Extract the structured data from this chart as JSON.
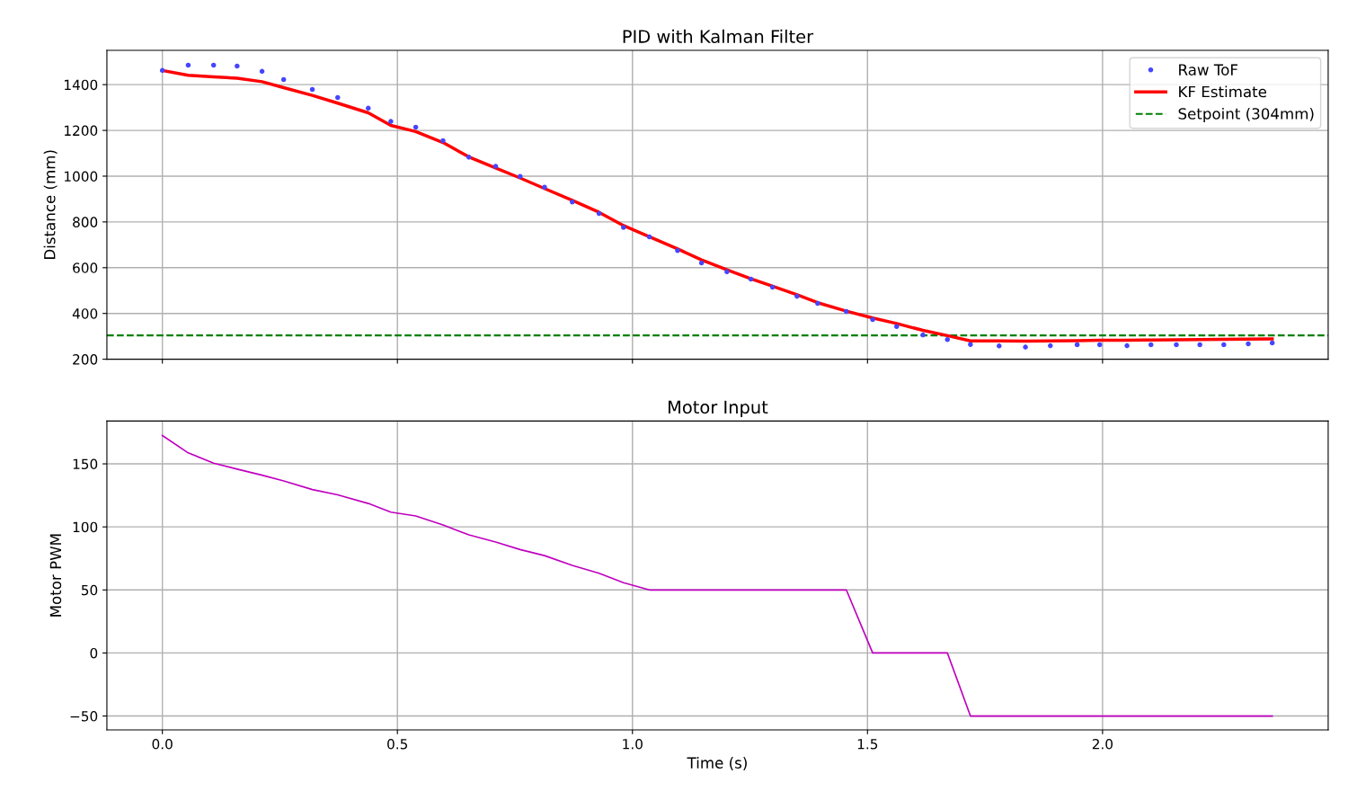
{
  "chart_data": [
    {
      "type": "line",
      "title": "PID with Kalman Filter",
      "ylabel": "Distance (mm)",
      "x": [
        0,
        0.055,
        0.109,
        0.159,
        0.212,
        0.258,
        0.319,
        0.373,
        0.438,
        0.486,
        0.539,
        0.597,
        0.652,
        0.709,
        0.761,
        0.813,
        0.872,
        0.929,
        0.981,
        1.036,
        1.096,
        1.147,
        1.201,
        1.252,
        1.298,
        1.35,
        1.394,
        1.455,
        1.511,
        1.562,
        1.618,
        1.67,
        1.719,
        1.78,
        1.836,
        1.889,
        1.946,
        1.994,
        2.052,
        2.103,
        2.157,
        2.207,
        2.258,
        2.31,
        2.361
      ],
      "series": [
        {
          "name": "Raw ToF",
          "type": "scatter",
          "marker": "circle",
          "color": "#4646ff",
          "values": [
            1462,
            1485,
            1485,
            1481,
            1458,
            1422,
            1379,
            1344,
            1297,
            1239,
            1214,
            1155,
            1083,
            1043,
            999,
            952,
            887,
            837,
            776,
            735,
            675,
            621,
            582,
            550,
            515,
            475,
            444,
            409,
            373,
            343,
            306,
            286,
            264,
            258,
            253,
            259,
            263,
            263,
            259,
            263,
            263,
            263,
            263,
            267,
            271
          ]
        },
        {
          "name": "KF Estimate",
          "type": "line",
          "line_style": "solid",
          "color": "#ff0000",
          "values": [
            1462,
            1441,
            1434,
            1428,
            1413,
            1387,
            1353,
            1319,
            1277,
            1222,
            1195,
            1147,
            1084,
            1036,
            992,
            946,
            894,
            842,
            784,
            735,
            682,
            634,
            591,
            552,
            519,
            482,
            447,
            410,
            380,
            356,
            326,
            303,
            280,
            280,
            279,
            280,
            281,
            283,
            283,
            284,
            285,
            286,
            287,
            288,
            289
          ]
        }
      ],
      "ref_lines": [
        {
          "axis": "y",
          "value": 304,
          "label": "Setpoint (304mm)",
          "color": "#008000",
          "line_style": "dashed"
        }
      ],
      "xlim": [
        -0.118,
        2.48
      ],
      "xticks": [
        0.0,
        0.5,
        1.0,
        1.5,
        2.0
      ],
      "ylim": [
        200,
        1550
      ],
      "yticks": [
        200,
        400,
        600,
        800,
        1000,
        1200,
        1400
      ],
      "tick_labels": "y",
      "grid": true,
      "legend": "top right"
    },
    {
      "type": "line",
      "title": "Motor Input",
      "xlabel": "Time (s)",
      "ylabel": "Motor PWM",
      "x": [
        0,
        0.055,
        0.109,
        0.159,
        0.212,
        0.258,
        0.319,
        0.373,
        0.438,
        0.486,
        0.539,
        0.597,
        0.652,
        0.709,
        0.761,
        0.813,
        0.872,
        0.929,
        0.981,
        1.036,
        1.096,
        1.147,
        1.201,
        1.252,
        1.298,
        1.35,
        1.394,
        1.455,
        1.511,
        1.562,
        1.618,
        1.67,
        1.719,
        1.78,
        1.836,
        1.889,
        1.946,
        1.994,
        2.052,
        2.103,
        2.157,
        2.207,
        2.258,
        2.31,
        2.361
      ],
      "series": [
        {
          "color": "#bf00bf",
          "values": [
            172.5,
            158.7,
            150.6,
            145.8,
            141,
            136.5,
            129.6,
            125.4,
            118.6,
            111.7,
            108.7,
            101.5,
            93.7,
            88,
            82,
            77.2,
            69.5,
            63.2,
            55.7,
            50,
            50,
            50,
            50,
            50,
            50,
            50,
            50,
            50,
            0,
            0,
            0,
            0,
            -50,
            -50,
            -50,
            -50,
            -50,
            -50,
            -50,
            -50,
            -50,
            -50,
            -50,
            -50,
            -50
          ]
        }
      ],
      "xlim": [
        -0.118,
        2.48
      ],
      "xticks": [
        {
          "value": 0,
          "label": "0.0"
        },
        0.5,
        {
          "value": 1,
          "label": "1.0"
        },
        1.5,
        {
          "value": 2,
          "label": "2.0"
        }
      ],
      "ylim": [
        -61,
        184
      ],
      "yticks": [
        {
          "value": -50,
          "label": "−50"
        },
        0,
        50,
        100,
        150
      ],
      "grid": true
    }
  ]
}
